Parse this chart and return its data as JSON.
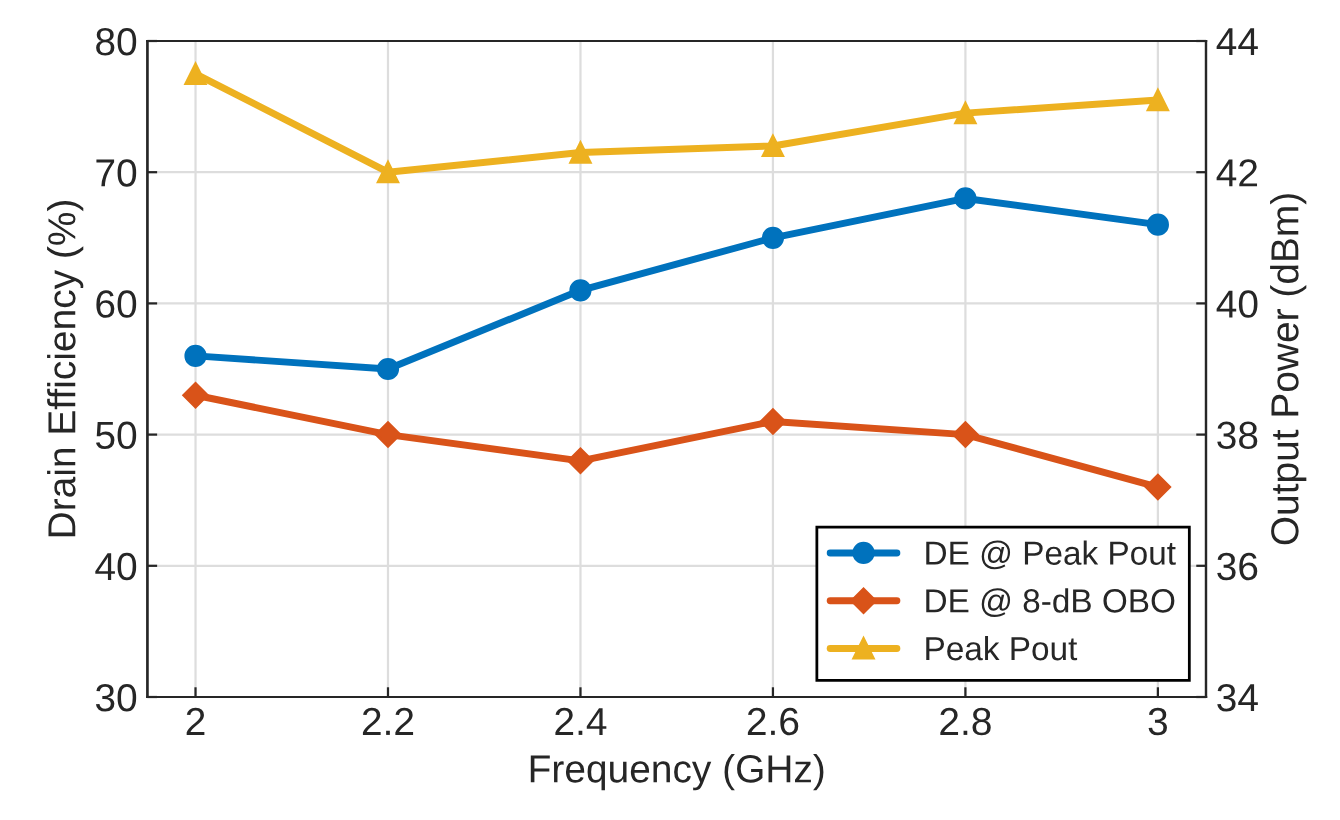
{
  "chart_data": {
    "type": "line",
    "xlabel": "Frequency (GHz)",
    "ylabel": "Drain Efficiency (%)",
    "y2label": "Output Power (dBm)",
    "x": [
      2,
      2.2,
      2.4,
      2.6,
      2.8,
      3
    ],
    "series": [
      {
        "name": "DE @ Peak Pout",
        "color": "#0072bd",
        "marker": "circle",
        "values": [
          56,
          55,
          61,
          65,
          68,
          66
        ]
      },
      {
        "name": "DE @ 8-dB OBO",
        "color": "#d95319",
        "marker": "diamond",
        "values": [
          53,
          50,
          48,
          51,
          50,
          46
        ]
      },
      {
        "name": "Peak Pout",
        "color": "#edb120",
        "marker": "triangle",
        "axis": "y2",
        "values": [
          43.5,
          42.0,
          42.3,
          42.4,
          42.9,
          43.1
        ]
      }
    ],
    "xlim": [
      1.95,
      3.05
    ],
    "xticks": [
      2,
      2.2,
      2.4,
      2.6,
      2.8,
      3
    ],
    "ylim": [
      30,
      80
    ],
    "yticks": [
      30,
      40,
      50,
      60,
      70,
      80
    ],
    "y2lim": [
      34,
      44
    ],
    "y2ticks": [
      34,
      36,
      38,
      40,
      42,
      44
    ],
    "grid": true,
    "legend": "bottom right",
    "line_style": "solid"
  }
}
